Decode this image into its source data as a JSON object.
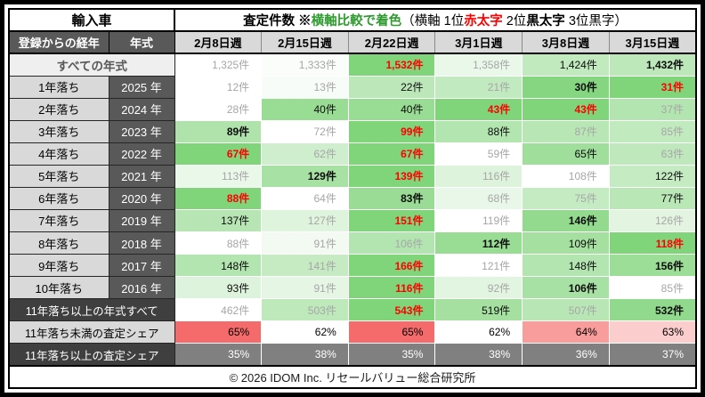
{
  "colors": {
    "scale_green_max": "#80d47a",
    "scale_red_max": "#f56b6b",
    "header_dark_bg": "#595959",
    "label_dark_bg": "#3f3f3f",
    "label_light_bg": "#d9d9d9",
    "share_gray_row_bg": "#808080",
    "muted_value_text": "#a6a6a6",
    "rank1_text": "#ff0000",
    "title_green_text": "#2e9b2e"
  },
  "header": {
    "car_type": "輸入車",
    "corner_label": "登録からの経年",
    "year_col_label": "年式"
  },
  "chart_data": {
    "type": "table",
    "title_parts": [
      {
        "text": "査定件数 ※",
        "style": "black-bold"
      },
      {
        "text": "横軸比較で着色",
        "style": "green-bold"
      },
      {
        "text": "（横軸 1位",
        "style": "normal"
      },
      {
        "text": "赤太字",
        "style": "red-bold"
      },
      {
        "text": " 2位",
        "style": "normal"
      },
      {
        "text": "黒太字",
        "style": "black-bold"
      },
      {
        "text": " 3位黒字）",
        "style": "normal"
      }
    ],
    "columns": [
      "2月8日週",
      "2月15日週",
      "2月22日週",
      "3月1日週",
      "3月8日週",
      "3月15日週"
    ],
    "rows": [
      {
        "label": "すべての年式",
        "year": null,
        "type": "total",
        "unit": "件",
        "values": [
          1325,
          1333,
          1532,
          1358,
          1424,
          1432
        ]
      },
      {
        "label": "1年落ち",
        "year": "2025 年",
        "type": "year",
        "unit": "件",
        "values": [
          12,
          13,
          22,
          21,
          30,
          31
        ]
      },
      {
        "label": "2年落ち",
        "year": "2024 年",
        "type": "year",
        "unit": "件",
        "values": [
          28,
          40,
          40,
          43,
          43,
          37
        ]
      },
      {
        "label": "3年落ち",
        "year": "2023 年",
        "type": "year",
        "unit": "件",
        "values": [
          89,
          72,
          99,
          88,
          87,
          85
        ]
      },
      {
        "label": "4年落ち",
        "year": "2022 年",
        "type": "year",
        "unit": "件",
        "values": [
          67,
          62,
          67,
          59,
          65,
          63
        ]
      },
      {
        "label": "5年落ち",
        "year": "2021 年",
        "type": "year",
        "unit": "件",
        "values": [
          113,
          129,
          139,
          116,
          108,
          122
        ]
      },
      {
        "label": "6年落ち",
        "year": "2020 年",
        "type": "year",
        "unit": "件",
        "values": [
          88,
          64,
          83,
          68,
          75,
          77
        ]
      },
      {
        "label": "7年落ち",
        "year": "2019 年",
        "type": "year",
        "unit": "件",
        "values": [
          137,
          127,
          151,
          119,
          146,
          126
        ]
      },
      {
        "label": "8年落ち",
        "year": "2018 年",
        "type": "year",
        "unit": "件",
        "values": [
          88,
          91,
          106,
          112,
          109,
          118
        ]
      },
      {
        "label": "9年落ち",
        "year": "2017 年",
        "type": "year",
        "unit": "件",
        "values": [
          148,
          141,
          166,
          121,
          148,
          156
        ]
      },
      {
        "label": "10年落ち",
        "year": "2016 年",
        "type": "year",
        "unit": "件",
        "values": [
          93,
          91,
          116,
          92,
          106,
          85
        ]
      },
      {
        "label": "11年落ち以上の年式すべて",
        "year": null,
        "type": "total-dark",
        "unit": "件",
        "values": [
          462,
          503,
          543,
          519,
          507,
          532
        ]
      },
      {
        "label": "11年落ち未満の査定シェア",
        "year": null,
        "type": "share-red",
        "unit": "%",
        "values": [
          65,
          62,
          65,
          62,
          64,
          63
        ]
      },
      {
        "label": "11年落ち以上の査定シェア",
        "year": null,
        "type": "share-gray",
        "unit": "%",
        "values": [
          35,
          38,
          35,
          38,
          36,
          37
        ]
      }
    ]
  },
  "footer": {
    "credit": "© 2026 IDOM Inc. リセールバリュー総合研究所"
  }
}
